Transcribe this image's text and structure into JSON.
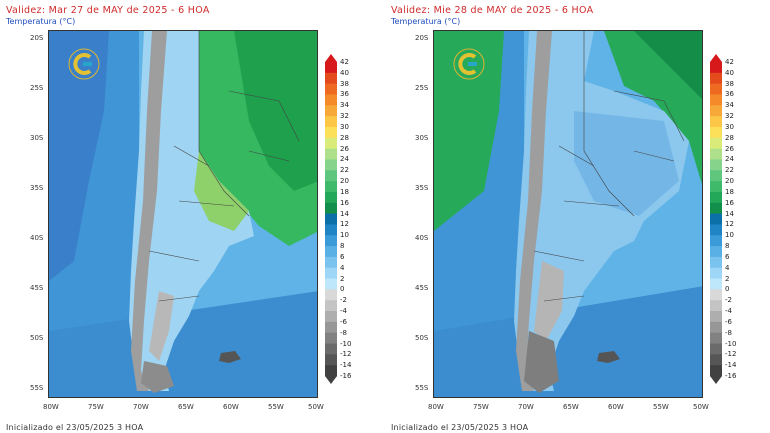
{
  "panels": [
    {
      "validity": "Validez: Mar 27 de MAY de 2025 - 6 HOA",
      "variable": "Temperatura (°C)",
      "initialized": "Inicializado el 23/05/2025 3 HOA",
      "lat_labels": [
        "20S",
        "25S",
        "30S",
        "35S",
        "40S",
        "45S",
        "50S",
        "55S"
      ],
      "lon_labels": [
        "80W",
        "75W",
        "70W",
        "65W",
        "60W",
        "55W",
        "50W"
      ]
    },
    {
      "validity": "Validez: Mie 28 de MAY de 2025 - 6 HOA",
      "variable": "Temperatura (°C)",
      "initialized": "Inicializado el 23/05/2025 3 HOA",
      "lat_labels": [
        "20S",
        "25S",
        "30S",
        "35S",
        "40S",
        "45S",
        "50S",
        "55S"
      ],
      "lon_labels": [
        "80W",
        "75W",
        "70W",
        "65W",
        "60W",
        "55W",
        "50W"
      ]
    }
  ],
  "colorbar": {
    "ticks": [
      "42",
      "40",
      "38",
      "36",
      "34",
      "32",
      "30",
      "28",
      "26",
      "24",
      "22",
      "20",
      "18",
      "16",
      "14",
      "12",
      "10",
      "8",
      "6",
      "4",
      "2",
      "0",
      "-2",
      "-4",
      "-6",
      "-8",
      "-10",
      "-12",
      "-14",
      "-16"
    ],
    "colors": [
      "#d7191c",
      "#e34a1c",
      "#ee6a21",
      "#f48a2a",
      "#f8a838",
      "#fcc646",
      "#fde05a",
      "#d9ec7a",
      "#aee08b",
      "#86d48c",
      "#5ec77d",
      "#3fba6a",
      "#23a85a",
      "#138f4c",
      "#0b6fa8",
      "#1f85c4",
      "#3a9bd8",
      "#59b0e4",
      "#7ac3ee",
      "#9dd6f6",
      "#bfe7fb",
      "#d9d9d9",
      "#c4c4c4",
      "#aeaeae",
      "#979797",
      "#818181",
      "#6b6b6b",
      "#565656",
      "#414141"
    ]
  }
}
